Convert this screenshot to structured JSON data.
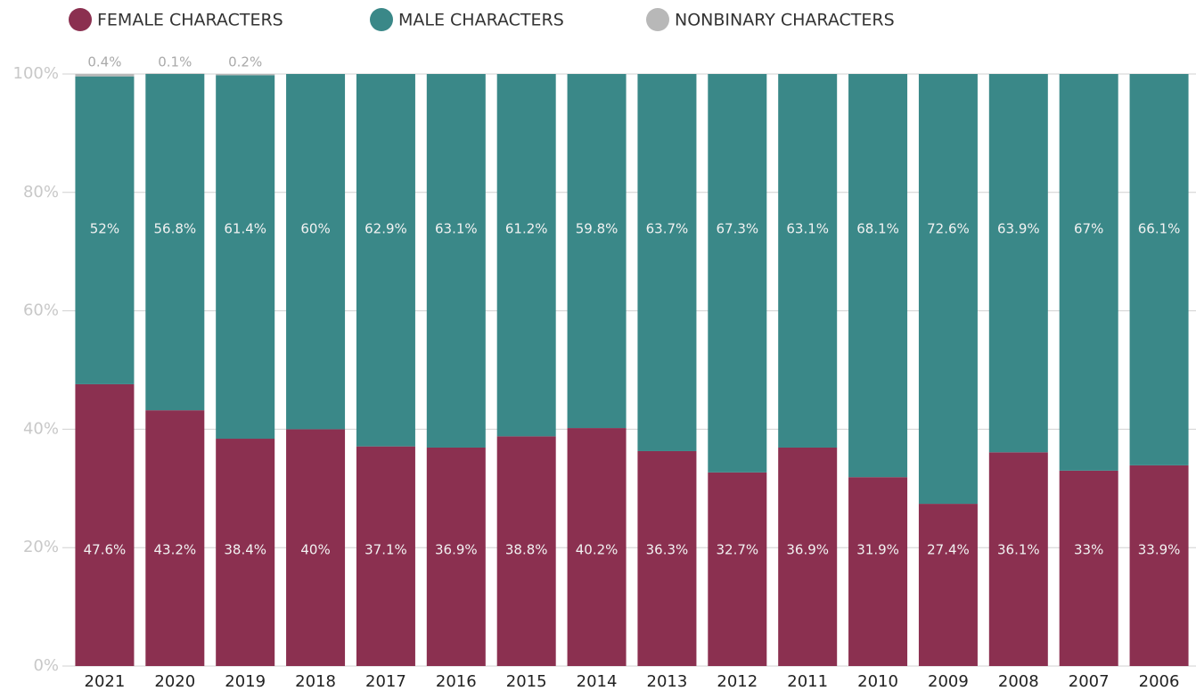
{
  "chart_data": {
    "type": "stacked_bar",
    "categories": [
      "2021",
      "2020",
      "2019",
      "2018",
      "2017",
      "2016",
      "2015",
      "2014",
      "2013",
      "2012",
      "2011",
      "2010",
      "2009",
      "2008",
      "2007",
      "2006"
    ],
    "series": [
      {
        "name": "FEMALE CHARACTERS",
        "color": "#8b3050",
        "values": [
          47.6,
          43.2,
          38.4,
          40,
          37.1,
          36.9,
          38.8,
          40.2,
          36.3,
          32.7,
          36.9,
          31.9,
          27.4,
          36.1,
          33,
          33.9
        ],
        "value_labels": [
          "47.6%",
          "43.2%",
          "38.4%",
          "40%",
          "37.1%",
          "36.9%",
          "38.8%",
          "40.2%",
          "36.3%",
          "32.7%",
          "36.9%",
          "31.9%",
          "27.4%",
          "36.1%",
          "33%",
          "33.9%"
        ]
      },
      {
        "name": "MALE CHARACTERS",
        "color": "#3a8888",
        "values": [
          52,
          56.8,
          61.4,
          60,
          62.9,
          63.1,
          61.2,
          59.8,
          63.7,
          67.3,
          63.1,
          68.1,
          72.6,
          63.9,
          67,
          66.1
        ],
        "value_labels": [
          "52%",
          "56.8%",
          "61.4%",
          "60%",
          "62.9%",
          "63.1%",
          "61.2%",
          "59.8%",
          "63.7%",
          "67.3%",
          "63.1%",
          "68.1%",
          "72.6%",
          "63.9%",
          "67%",
          "66.1%"
        ]
      },
      {
        "name": "NONBINARY CHARACTERS",
        "color": "#b8b8b8",
        "values": [
          0.4,
          0.1,
          0.2,
          null,
          null,
          null,
          null,
          null,
          null,
          null,
          null,
          null,
          null,
          null,
          null,
          null
        ],
        "value_labels": [
          "0.4%",
          "0.1%",
          "0.2%",
          null,
          null,
          null,
          null,
          null,
          null,
          null,
          null,
          null,
          null,
          null,
          null,
          null
        ]
      }
    ],
    "ylim": [
      0,
      100
    ],
    "yticks": [
      {
        "value": 0,
        "label": "0%"
      },
      {
        "value": 20,
        "label": "20%"
      },
      {
        "value": 40,
        "label": "40%"
      },
      {
        "value": 60,
        "label": "60%"
      },
      {
        "value": 80,
        "label": "80%"
      },
      {
        "value": 100,
        "label": "100%"
      }
    ],
    "grid": true,
    "legend": "top"
  }
}
